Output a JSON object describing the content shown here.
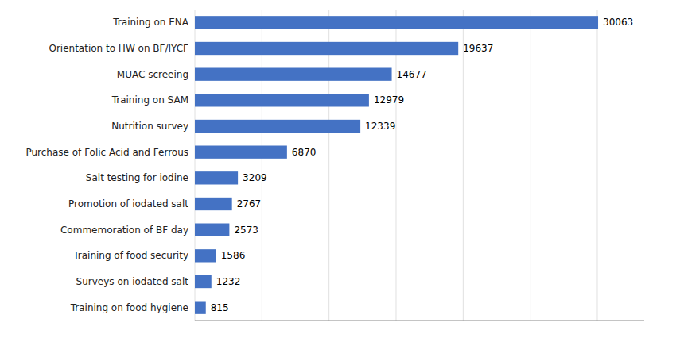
{
  "chart_data": {
    "type": "bar",
    "orientation": "horizontal",
    "categories": [
      "Training on food hygiene",
      "Surveys on iodated salt",
      "Training of food security",
      "Commemoration of BF day",
      "Promotion of iodated salt",
      "Salt testing for iodine",
      "Purchase of Folic Acid and Ferrous",
      "Nutrition survey",
      "Training on SAM",
      "MUAC screeing",
      "Orientation to HW on BF/IYCF",
      "Training on ENA"
    ],
    "values": [
      815,
      1232,
      1586,
      2573,
      2767,
      3209,
      6870,
      12339,
      12979,
      14677,
      19637,
      30063
    ],
    "color": "#4472C4",
    "xlim": [
      0,
      33500
    ],
    "xticks": [
      0,
      5000,
      10000,
      15000,
      20000,
      25000,
      30000
    ],
    "grid": true,
    "tick_labels": "y",
    "data_labels": true
  }
}
